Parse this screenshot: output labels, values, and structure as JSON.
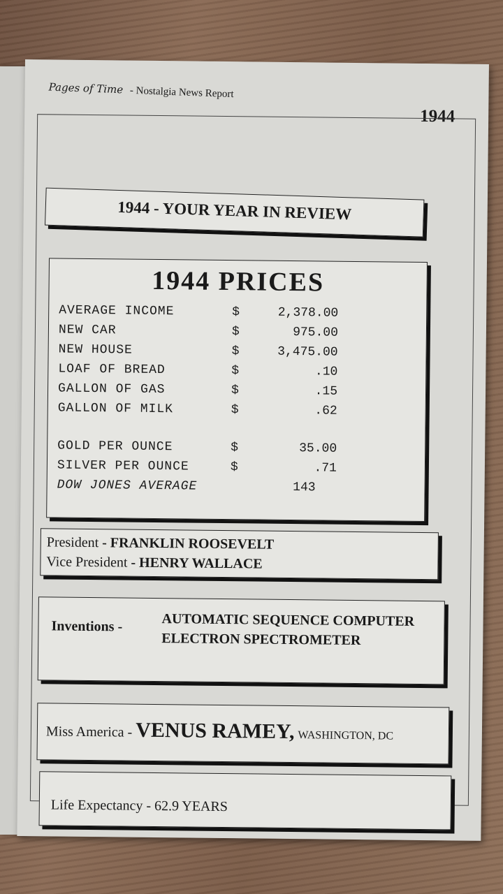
{
  "header": {
    "brand": "Pages of Time",
    "subtitle": "- Nostalgia News Report",
    "year": "1944"
  },
  "title": "1944 - YOUR YEAR IN REVIEW",
  "prices": {
    "heading": "1944  PRICES",
    "items": [
      {
        "label": "AVERAGE INCOME",
        "currency": "$",
        "value": "2,378.00"
      },
      {
        "label": "NEW CAR",
        "currency": "$",
        "value": "975.00"
      },
      {
        "label": "NEW HOUSE",
        "currency": "$",
        "value": "3,475.00"
      },
      {
        "label": "LOAF OF BREAD",
        "currency": "$",
        "value": ".10"
      },
      {
        "label": "GALLON OF GAS",
        "currency": "$",
        "value": ".15"
      },
      {
        "label": "GALLON OF MILK",
        "currency": "$",
        "value": ".62"
      },
      {
        "label": "GOLD PER OUNCE",
        "currency": "$",
        "value": "35.00"
      },
      {
        "label": "SILVER PER OUNCE",
        "currency": "$",
        "value": ".71"
      },
      {
        "label": "DOW JONES AVERAGE",
        "currency": "",
        "value": "143"
      }
    ]
  },
  "leaders": {
    "president_label": "President",
    "president": "- FRANKLIN  ROOSEVELT",
    "vp_label": "Vice  President",
    "vp": "- HENRY  WALLACE"
  },
  "inventions": {
    "label": "Inventions  -",
    "items": [
      "AUTOMATIC  SEQUENCE  COMPUTER",
      "ELECTRON  SPECTROMETER"
    ]
  },
  "miss_america": {
    "label": "Miss  America  -",
    "name": "VENUS  RAMEY,",
    "place": "WASHINGTON,  DC"
  },
  "life_expectancy": {
    "label": "Life  Expectancy  -",
    "value": "62.9  YEARS"
  }
}
